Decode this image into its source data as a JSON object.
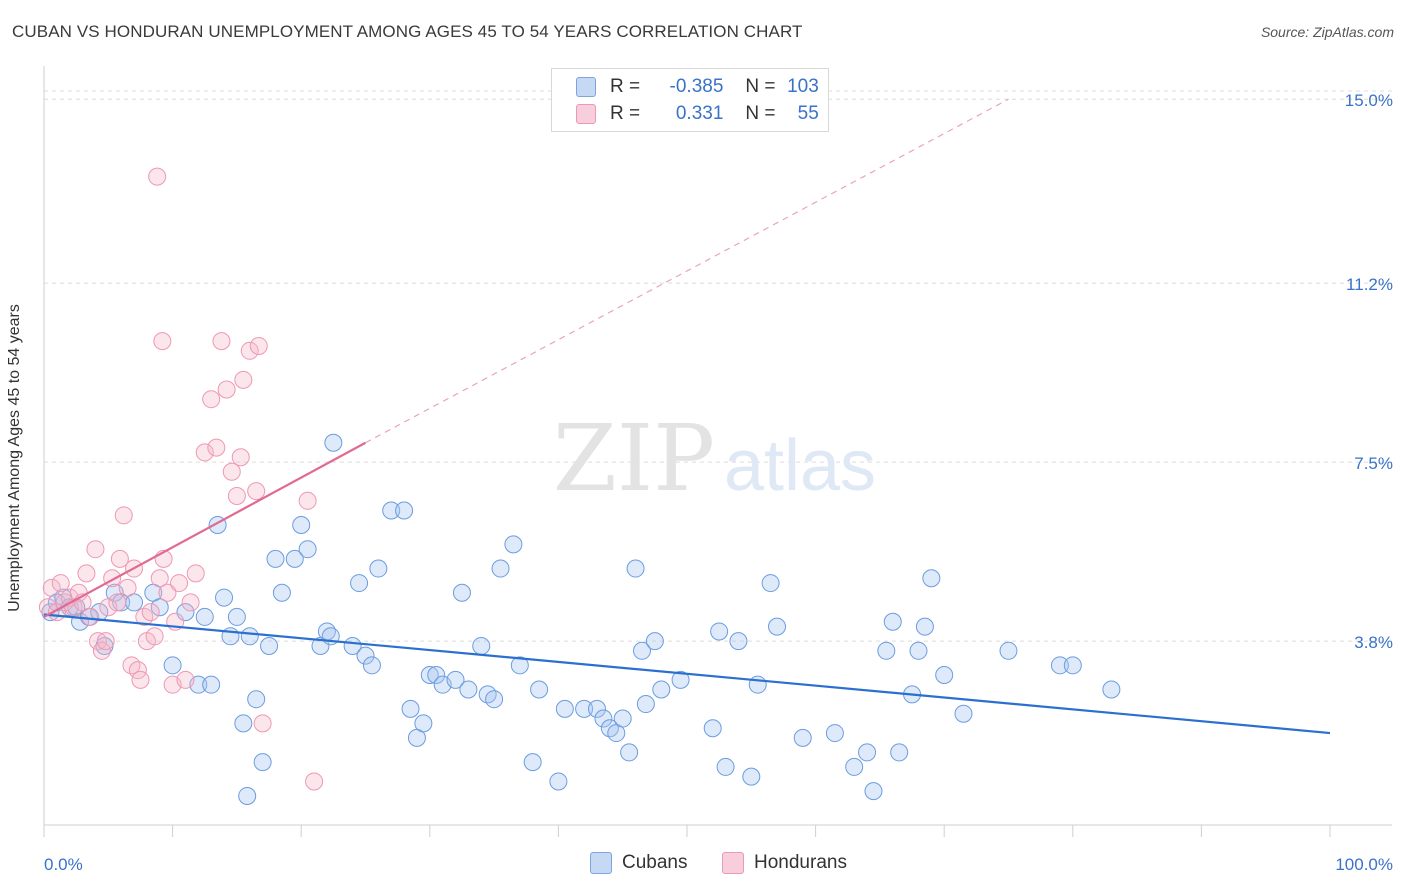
{
  "header": {
    "title": "CUBAN VS HONDURAN UNEMPLOYMENT AMONG AGES 45 TO 54 YEARS CORRELATION CHART",
    "source": "Source: ZipAtlas.com"
  },
  "watermark": {
    "zip": "ZIP",
    "atlas": "atlas"
  },
  "legend": {
    "rows": [
      {
        "r_label": "R =",
        "r_value": "-0.385",
        "n_label": "N =",
        "n_value": "103",
        "color": "#a9c6ee"
      },
      {
        "r_label": "R =",
        "r_value": "0.331",
        "n_label": "N =",
        "n_value": "55",
        "color": "#f4b6c9"
      }
    ]
  },
  "bottom_legend": [
    {
      "label": "Cubans",
      "color": "#a9c6ee"
    },
    {
      "label": "Hondurans",
      "color": "#f4b6c9"
    }
  ],
  "chart_data": {
    "type": "scatter",
    "title": "CUBAN VS HONDURAN UNEMPLOYMENT AMONG AGES 45 TO 54 YEARS CORRELATION CHART",
    "xlabel": "",
    "ylabel": "Unemployment Among Ages 45 to 54 years",
    "xlim": [
      0,
      100
    ],
    "ylim": [
      0,
      15.5
    ],
    "x_tick_labels": [
      "0.0%",
      "100.0%"
    ],
    "y_ticks": [
      3.8,
      7.5,
      11.2,
      15.0
    ],
    "y_tick_labels": [
      "3.8%",
      "7.5%",
      "11.2%",
      "15.0%"
    ],
    "grid": true,
    "legend_position": "top-center",
    "series": [
      {
        "name": "Cubans",
        "color": "#6a9de0",
        "line_color": "#2b6fcf",
        "trend": {
          "x": [
            0,
            100
          ],
          "y": [
            4.35,
            1.9
          ]
        },
        "points": [
          [
            0.5,
            4.4
          ],
          [
            1.0,
            4.6
          ],
          [
            1.5,
            4.7
          ],
          [
            2.0,
            4.5
          ],
          [
            2.5,
            4.5
          ],
          [
            2.8,
            4.2
          ],
          [
            3.5,
            4.3
          ],
          [
            4.3,
            4.4
          ],
          [
            4.7,
            3.7
          ],
          [
            5.5,
            4.8
          ],
          [
            6.0,
            4.6
          ],
          [
            7.0,
            4.6
          ],
          [
            8.5,
            4.8
          ],
          [
            9.0,
            4.5
          ],
          [
            11.0,
            4.4
          ],
          [
            12.5,
            4.3
          ],
          [
            13.5,
            6.2
          ],
          [
            14.0,
            4.7
          ],
          [
            14.5,
            3.9
          ],
          [
            15.0,
            4.3
          ],
          [
            16.0,
            3.9
          ],
          [
            17.5,
            3.7
          ],
          [
            18.0,
            5.5
          ],
          [
            18.5,
            4.8
          ],
          [
            19.5,
            5.5
          ],
          [
            20.0,
            6.2
          ],
          [
            20.5,
            5.7
          ],
          [
            21.5,
            3.7
          ],
          [
            22.0,
            4.0
          ],
          [
            22.3,
            3.9
          ],
          [
            22.5,
            7.9
          ],
          [
            24.0,
            3.7
          ],
          [
            24.5,
            5.0
          ],
          [
            25.0,
            3.5
          ],
          [
            25.5,
            3.3
          ],
          [
            26.0,
            5.3
          ],
          [
            27.0,
            6.5
          ],
          [
            28.0,
            6.5
          ],
          [
            28.5,
            2.4
          ],
          [
            29.0,
            1.8
          ],
          [
            29.5,
            2.1
          ],
          [
            30.0,
            3.1
          ],
          [
            30.5,
            3.1
          ],
          [
            31.0,
            2.9
          ],
          [
            32.0,
            3.0
          ],
          [
            32.5,
            4.8
          ],
          [
            33.0,
            2.8
          ],
          [
            34.0,
            3.7
          ],
          [
            34.5,
            2.7
          ],
          [
            35.0,
            2.6
          ],
          [
            35.5,
            5.3
          ],
          [
            36.5,
            5.8
          ],
          [
            37.0,
            3.3
          ],
          [
            38.0,
            1.3
          ],
          [
            38.5,
            2.8
          ],
          [
            40.0,
            0.9
          ],
          [
            40.5,
            2.4
          ],
          [
            42.0,
            2.4
          ],
          [
            43.0,
            2.4
          ],
          [
            43.5,
            2.2
          ],
          [
            44.0,
            2.0
          ],
          [
            44.5,
            1.9
          ],
          [
            45.0,
            2.2
          ],
          [
            45.5,
            1.5
          ],
          [
            46.0,
            5.3
          ],
          [
            46.5,
            3.6
          ],
          [
            46.8,
            2.5
          ],
          [
            47.5,
            3.8
          ],
          [
            48.0,
            2.8
          ],
          [
            49.5,
            3.0
          ],
          [
            52.0,
            2.0
          ],
          [
            52.5,
            4.0
          ],
          [
            53.0,
            1.2
          ],
          [
            54.0,
            3.8
          ],
          [
            55.0,
            1.0
          ],
          [
            55.5,
            2.9
          ],
          [
            56.5,
            5.0
          ],
          [
            57.0,
            4.1
          ],
          [
            59.0,
            1.8
          ],
          [
            61.5,
            1.9
          ],
          [
            63.0,
            1.2
          ],
          [
            64.0,
            1.5
          ],
          [
            64.5,
            0.7
          ],
          [
            65.5,
            3.6
          ],
          [
            66.0,
            4.2
          ],
          [
            66.5,
            1.5
          ],
          [
            67.5,
            2.7
          ],
          [
            68.0,
            3.6
          ],
          [
            68.5,
            4.1
          ],
          [
            69.0,
            5.1
          ],
          [
            70.0,
            3.1
          ],
          [
            71.5,
            2.3
          ],
          [
            75.0,
            3.6
          ],
          [
            79.0,
            3.3
          ],
          [
            80.0,
            3.3
          ],
          [
            83.0,
            2.8
          ],
          [
            12.0,
            2.9
          ],
          [
            13.0,
            2.9
          ],
          [
            15.5,
            2.1
          ],
          [
            17.0,
            1.3
          ],
          [
            16.5,
            2.6
          ],
          [
            10.0,
            3.3
          ],
          [
            15.8,
            0.6
          ]
        ]
      },
      {
        "name": "Hondurans",
        "color": "#ef97b4",
        "line_color": "#e06a93",
        "trend": {
          "x": [
            0,
            25
          ],
          "y": [
            4.3,
            7.9
          ],
          "extended": {
            "x": [
              25,
              75
            ],
            "y": [
              7.9,
              15.0
            ]
          }
        },
        "points": [
          [
            0.3,
            4.5
          ],
          [
            0.6,
            4.9
          ],
          [
            1.0,
            4.4
          ],
          [
            1.3,
            5.0
          ],
          [
            1.6,
            4.6
          ],
          [
            2.0,
            4.7
          ],
          [
            2.3,
            4.5
          ],
          [
            2.7,
            4.8
          ],
          [
            3.0,
            4.6
          ],
          [
            3.3,
            5.2
          ],
          [
            3.6,
            4.3
          ],
          [
            4.0,
            5.7
          ],
          [
            4.2,
            3.8
          ],
          [
            4.5,
            3.6
          ],
          [
            4.8,
            3.8
          ],
          [
            5.0,
            4.5
          ],
          [
            5.3,
            5.1
          ],
          [
            5.7,
            4.6
          ],
          [
            5.9,
            5.5
          ],
          [
            6.2,
            6.4
          ],
          [
            6.5,
            4.9
          ],
          [
            6.8,
            3.3
          ],
          [
            7.0,
            5.3
          ],
          [
            7.3,
            3.2
          ],
          [
            7.5,
            3.0
          ],
          [
            7.8,
            4.3
          ],
          [
            8.0,
            3.8
          ],
          [
            8.3,
            4.4
          ],
          [
            8.6,
            3.9
          ],
          [
            9.0,
            5.1
          ],
          [
            9.3,
            5.5
          ],
          [
            9.6,
            4.8
          ],
          [
            10.0,
            2.9
          ],
          [
            10.2,
            4.2
          ],
          [
            10.5,
            5.0
          ],
          [
            11.0,
            3.0
          ],
          [
            11.4,
            4.6
          ],
          [
            11.8,
            5.2
          ],
          [
            12.5,
            7.7
          ],
          [
            13.0,
            8.8
          ],
          [
            13.4,
            7.8
          ],
          [
            13.8,
            10.0
          ],
          [
            14.2,
            9.0
          ],
          [
            14.6,
            7.3
          ],
          [
            15.0,
            6.8
          ],
          [
            15.3,
            7.6
          ],
          [
            16.0,
            9.8
          ],
          [
            16.5,
            6.9
          ],
          [
            17.0,
            2.1
          ],
          [
            20.5,
            6.7
          ],
          [
            8.8,
            13.4
          ],
          [
            9.2,
            10.0
          ],
          [
            21.0,
            0.9
          ],
          [
            15.5,
            9.2
          ],
          [
            16.7,
            9.9
          ]
        ]
      }
    ]
  }
}
